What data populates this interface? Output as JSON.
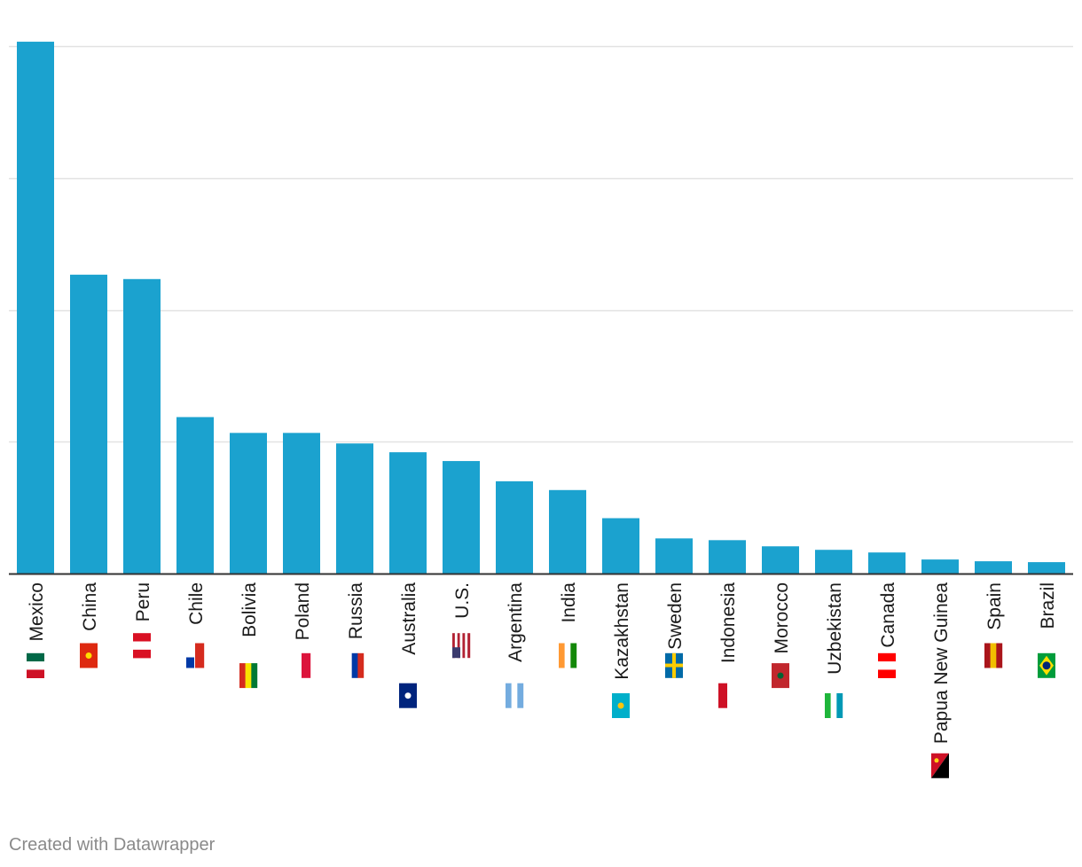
{
  "chart_data": {
    "type": "bar",
    "categories": [
      "Mexico",
      "China",
      "Peru",
      "Chile",
      "Bolivia",
      "Poland",
      "Russia",
      "Australia",
      "U.S.",
      "Argentina",
      "India",
      "Kazakhstan",
      "Sweden",
      "Indonesia",
      "Morocco",
      "Uzbekistan",
      "Canada",
      "Papua New Guinea",
      "Spain",
      "Brazil"
    ],
    "values": [
      6.05,
      3.4,
      3.35,
      1.78,
      1.6,
      1.6,
      1.48,
      1.38,
      1.28,
      1.05,
      0.95,
      0.63,
      0.4,
      0.38,
      0.31,
      0.27,
      0.24,
      0.16,
      0.14,
      0.13
    ],
    "flags": [
      {
        "code": "MX",
        "colors": [
          "#006847",
          "#ffffff",
          "#ce1126"
        ],
        "orientation": "v"
      },
      {
        "code": "CN",
        "colors": [
          "#de2910"
        ],
        "orientation": "solid",
        "star": "#ffde00"
      },
      {
        "code": "PE",
        "colors": [
          "#d91023",
          "#ffffff",
          "#d91023"
        ],
        "orientation": "v"
      },
      {
        "code": "CL",
        "colors": [
          "#ffffff",
          "#d52b1e"
        ],
        "orientation": "h",
        "canton": "#0039a6"
      },
      {
        "code": "BO",
        "colors": [
          "#d52b1e",
          "#f9e300",
          "#007934"
        ],
        "orientation": "h"
      },
      {
        "code": "PL",
        "colors": [
          "#ffffff",
          "#dc143c"
        ],
        "orientation": "h"
      },
      {
        "code": "RU",
        "colors": [
          "#ffffff",
          "#0039a6",
          "#d52b1e"
        ],
        "orientation": "h"
      },
      {
        "code": "AU",
        "colors": [
          "#00247d"
        ],
        "orientation": "solid",
        "star": "#ffffff"
      },
      {
        "code": "US",
        "colors": [
          "#b22234",
          "#ffffff",
          "#b22234",
          "#ffffff",
          "#b22234",
          "#ffffff",
          "#b22234"
        ],
        "orientation": "h",
        "canton": "#3c3b6e"
      },
      {
        "code": "AR",
        "colors": [
          "#74acdf",
          "#ffffff",
          "#74acdf"
        ],
        "orientation": "h"
      },
      {
        "code": "IN",
        "colors": [
          "#ff9933",
          "#ffffff",
          "#138808"
        ],
        "orientation": "h"
      },
      {
        "code": "KZ",
        "colors": [
          "#00afca"
        ],
        "orientation": "solid",
        "star": "#fec50c"
      },
      {
        "code": "SE",
        "colors": [
          "#006aa7"
        ],
        "orientation": "cross",
        "cross": "#fecc00"
      },
      {
        "code": "ID",
        "colors": [
          "#ce1126",
          "#ffffff"
        ],
        "orientation": "h"
      },
      {
        "code": "MA",
        "colors": [
          "#c1272d"
        ],
        "orientation": "solid",
        "star": "#006233"
      },
      {
        "code": "UZ",
        "colors": [
          "#1eb53a",
          "#ffffff",
          "#0099b5"
        ],
        "orientation": "h"
      },
      {
        "code": "CA",
        "colors": [
          "#ff0000",
          "#ffffff",
          "#ff0000"
        ],
        "orientation": "v"
      },
      {
        "code": "PG",
        "colors": [
          "#000000",
          "#ce1126"
        ],
        "orientation": "diag",
        "star": "#fcd116"
      },
      {
        "code": "ES",
        "colors": [
          "#aa151b",
          "#f1bf00",
          "#aa151b"
        ],
        "orientation": "h"
      },
      {
        "code": "BR",
        "colors": [
          "#009c3b"
        ],
        "orientation": "diamond",
        "star": "#ffdf00"
      }
    ],
    "ylim": [
      0,
      6
    ],
    "yticks": [
      0,
      1.5,
      3,
      4.5,
      6
    ],
    "tick_labels_visible": false,
    "grid": true,
    "bar_color": "#1ba2cf",
    "gridline_color": "#e2e2e2",
    "baseline_color": "#333333"
  },
  "footer": {
    "credit": "Created with Datawrapper"
  }
}
